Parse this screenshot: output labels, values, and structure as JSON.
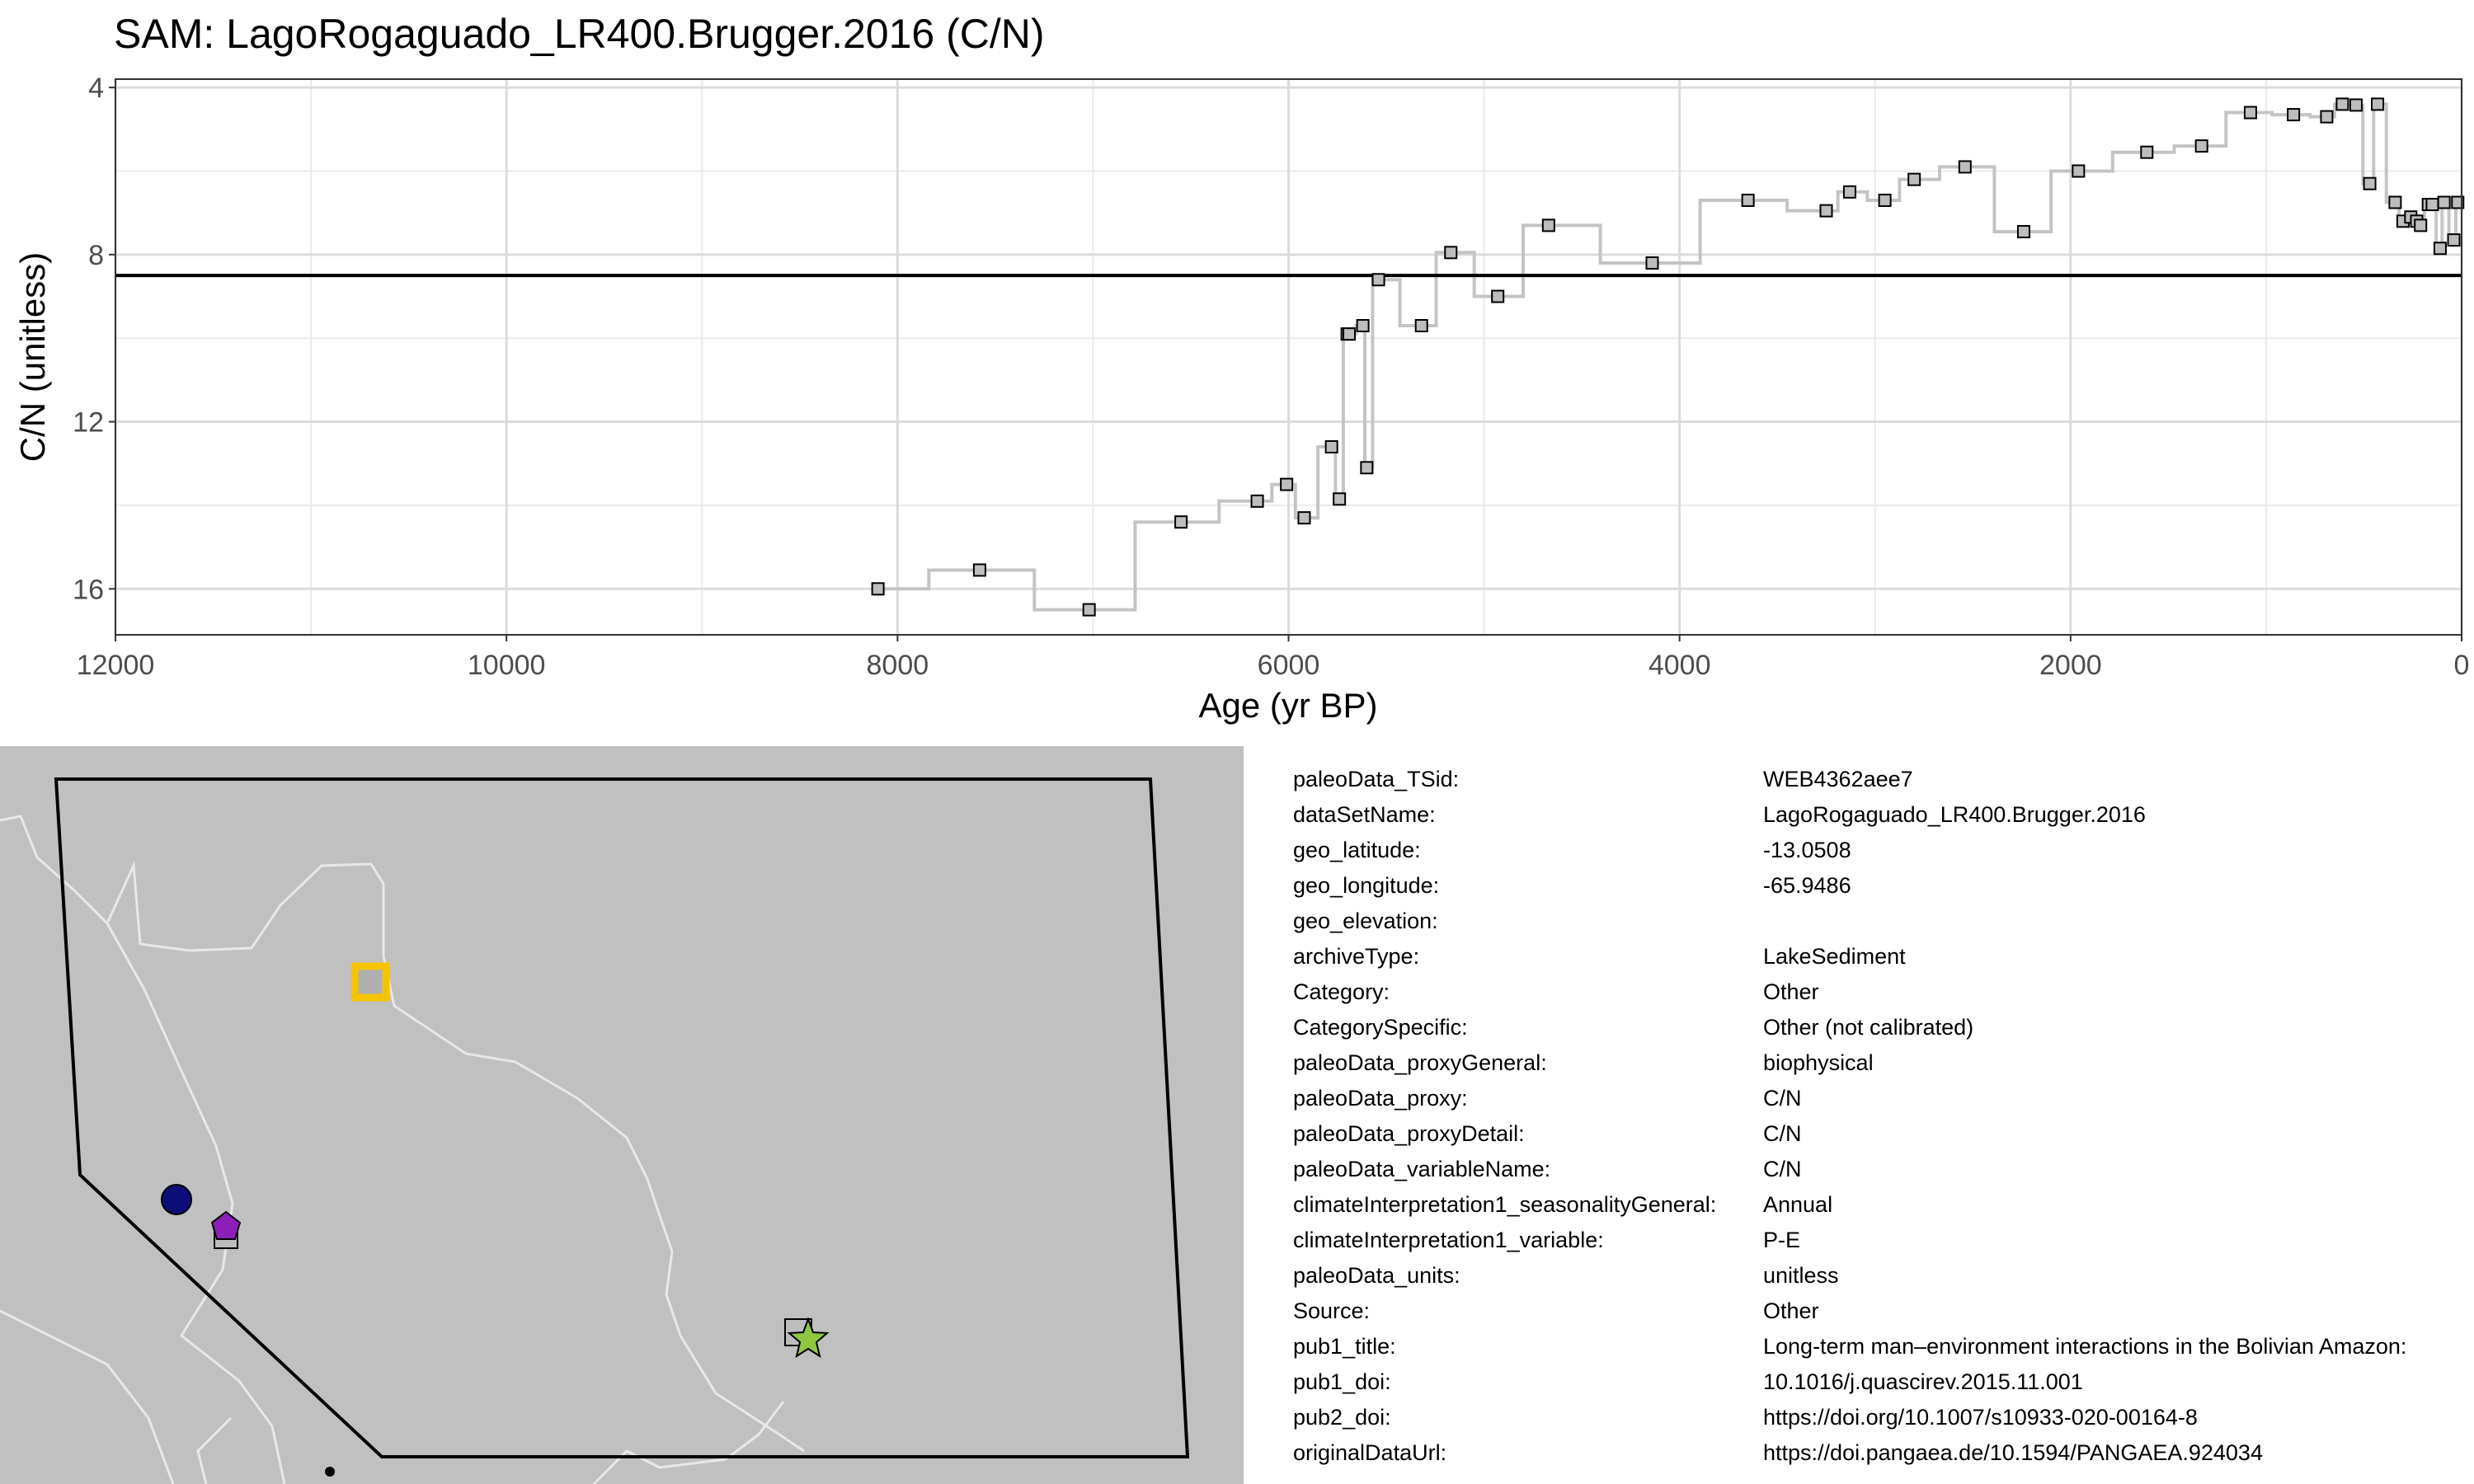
{
  "chart_data": {
    "type": "line",
    "title": "SAM: LagoRogaguado_LR400.Brugger.2016 (C/N)",
    "xlabel": "Age (yr BP)",
    "ylabel": "C/N (unitless)",
    "xlim": [
      12000,
      0
    ],
    "ylim": [
      17.1,
      3.8
    ],
    "x_reversed": true,
    "y_reversed": true,
    "x_ticks": [
      12000,
      10000,
      8000,
      6000,
      4000,
      2000,
      0
    ],
    "y_ticks": [
      4,
      8,
      12,
      16
    ],
    "grid": true,
    "step": true,
    "reference_line": 8.5,
    "series": [
      {
        "x": [
          8100,
          7580,
          7020,
          6550,
          6160,
          6010,
          5920,
          5780,
          5740,
          5700,
          5690,
          5620,
          5600,
          5540,
          5320,
          5170,
          4930,
          4670,
          4140,
          3650,
          3250,
          3130,
          2950,
          2800,
          2540,
          2240,
          1960,
          1610,
          1330,
          1080,
          860,
          690,
          610,
          540,
          470,
          430,
          340,
          300,
          260,
          230,
          210,
          170,
          150,
          110,
          90,
          40,
          20
        ],
        "y": [
          16.0,
          15.55,
          16.5,
          14.4,
          13.9,
          13.5,
          14.3,
          12.6,
          13.85,
          9.9,
          9.9,
          9.7,
          13.1,
          8.6,
          9.7,
          7.95,
          9.0,
          7.3,
          8.2,
          6.7,
          6.95,
          6.5,
          6.7,
          6.2,
          5.9,
          7.45,
          6.0,
          5.55,
          5.4,
          4.6,
          4.65,
          4.7,
          4.4,
          4.42,
          6.3,
          4.4,
          6.75,
          7.2,
          7.1,
          7.2,
          7.3,
          6.8,
          6.8,
          7.85,
          6.75,
          7.65,
          6.75
        ]
      }
    ]
  },
  "metadata": [
    {
      "key": "paleoData_TSid:",
      "value": "WEB4362aee7"
    },
    {
      "key": "dataSetName:",
      "value": "LagoRogaguado_LR400.Brugger.2016"
    },
    {
      "key": "geo_latitude:",
      "value": "-13.0508"
    },
    {
      "key": "geo_longitude:",
      "value": "-65.9486"
    },
    {
      "key": "geo_elevation:",
      "value": ""
    },
    {
      "key": "archiveType:",
      "value": "LakeSediment"
    },
    {
      "key": "Category:",
      "value": "Other"
    },
    {
      "key": "CategorySpecific:",
      "value": "Other (not calibrated)"
    },
    {
      "key": "paleoData_proxyGeneral:",
      "value": "biophysical"
    },
    {
      "key": "paleoData_proxy:",
      "value": "C/N"
    },
    {
      "key": "paleoData_proxyDetail:",
      "value": "C/N"
    },
    {
      "key": "paleoData_variableName:",
      "value": "C/N"
    },
    {
      "key": "climateInterpretation1_seasonalityGeneral:",
      "value": "Annual"
    },
    {
      "key": "climateInterpretation1_variable:",
      "value": "P-E"
    },
    {
      "key": "paleoData_units:",
      "value": "unitless"
    },
    {
      "key": "Source:",
      "value": "Other"
    },
    {
      "key": "pub1_title:",
      "value": "Long-term man–environment interactions in the Bolivian Amazon:"
    },
    {
      "key": "pub1_doi:",
      "value": "10.1016/j.quascirev.2015.11.001"
    },
    {
      "key": "pub2_doi:",
      "value": "https://doi.org/10.1007/s10933-020-00164-8"
    },
    {
      "key": "originalDataUrl:",
      "value": "https://doi.pangaea.de/10.1594/PANGAEA.924034"
    }
  ],
  "map": {
    "land_color": "#c0c0c0",
    "border_color": "#e8e8e8",
    "markers": [
      {
        "shape": "square-open",
        "color": "#f5c400",
        "fill": "#b0b0b0"
      },
      {
        "shape": "circle",
        "color": "#0d0d7a"
      },
      {
        "shape": "pentagon",
        "color": "#8b1fb8"
      },
      {
        "shape": "square",
        "color": "#bdbdbd"
      },
      {
        "shape": "square",
        "color": "#bdbdbd"
      },
      {
        "shape": "star",
        "color": "#8dc63f"
      },
      {
        "shape": "dot",
        "color": "#000000"
      }
    ]
  }
}
